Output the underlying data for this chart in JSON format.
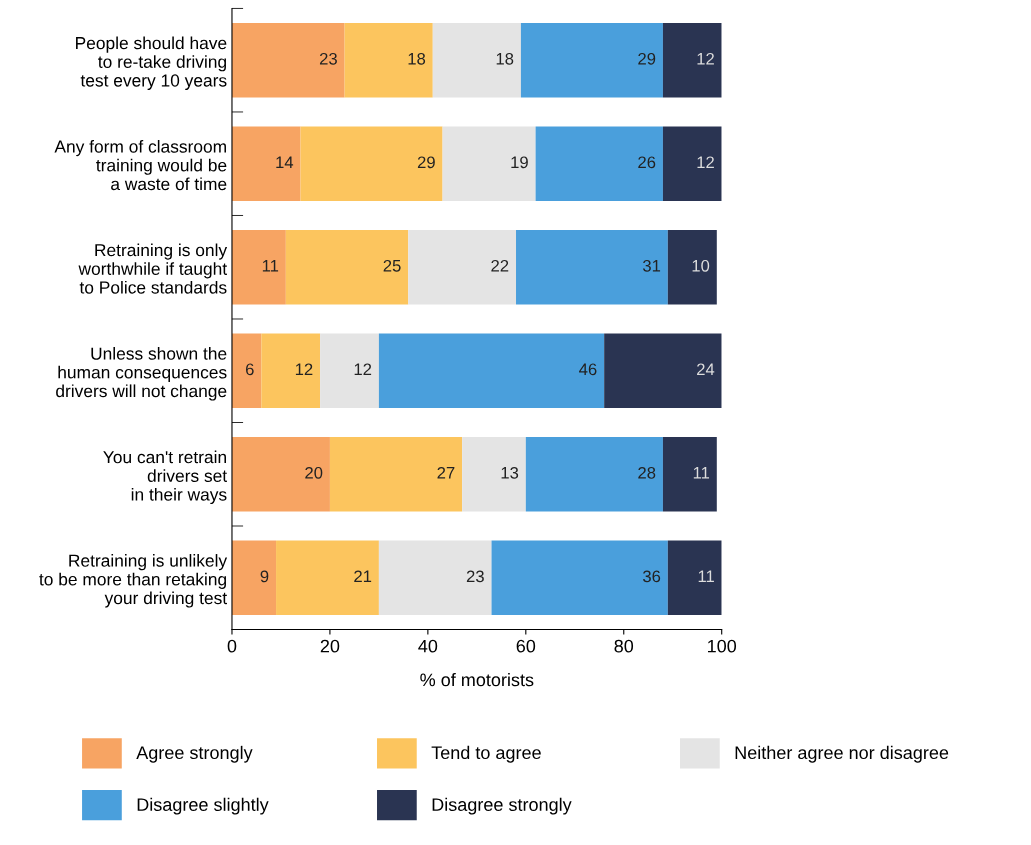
{
  "chart_data": {
    "type": "bar",
    "orientation": "horizontal",
    "stacked": true,
    "xlabel": "% of motorists",
    "categories": [
      "People should have\nto re-take driving\ntest every 10 years",
      "Any form of classroom\ntraining would be\na waste of time",
      "Retraining is only\nworthwhile if taught\nto Police standards",
      "Unless shown the\nhuman consequences\ndrivers will not change",
      "You can't retrain\ndrivers set\nin their ways",
      "Retraining is unlikely\nto be more than retaking\nyour driving test"
    ],
    "series": [
      {
        "name": "Agree strongly",
        "color": "#f7a463",
        "values": [
          23,
          14,
          11,
          6,
          20,
          9
        ]
      },
      {
        "name": "Tend to agree",
        "color": "#fcc55e",
        "values": [
          18,
          29,
          25,
          12,
          27,
          21
        ]
      },
      {
        "name": "Neither agree nor disagree",
        "color": "#e4e4e4",
        "values": [
          18,
          19,
          22,
          12,
          13,
          23
        ]
      },
      {
        "name": "Disagree slightly",
        "color": "#4a9fdc",
        "values": [
          29,
          26,
          31,
          46,
          28,
          36
        ]
      },
      {
        "name": "Disagree strongly",
        "color": "#2a3452",
        "values": [
          12,
          12,
          10,
          24,
          11,
          11
        ]
      }
    ],
    "xlim": [
      0,
      100
    ],
    "xticks": [
      0,
      20,
      40,
      60,
      80,
      100
    ],
    "data_labels": true,
    "legend": "bottom",
    "grid": false
  }
}
